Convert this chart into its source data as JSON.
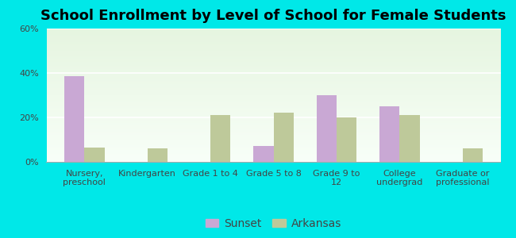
{
  "title": "School Enrollment by Level of School for Female Students",
  "categories": [
    "Nursery,\npreschool",
    "Kindergarten",
    "Grade 1 to 4",
    "Grade 5 to 8",
    "Grade 9 to\n12",
    "College\nundergrad",
    "Graduate or\nprofessional"
  ],
  "sunset_values": [
    38.5,
    0,
    0,
    7,
    30,
    25,
    0
  ],
  "arkansas_values": [
    6.5,
    6,
    21,
    22,
    20,
    21,
    6
  ],
  "sunset_color": "#c9a8d4",
  "arkansas_color": "#bec99a",
  "background_color": "#00e8e8",
  "plot_bg_top": "#e6f5e0",
  "plot_bg_bottom": "#f8fff8",
  "ylim": [
    0,
    60
  ],
  "yticks": [
    0,
    20,
    40,
    60
  ],
  "ytick_labels": [
    "0%",
    "20%",
    "40%",
    "60%"
  ],
  "legend_labels": [
    "Sunset",
    "Arkansas"
  ],
  "bar_width": 0.32,
  "title_fontsize": 13,
  "tick_fontsize": 8,
  "legend_fontsize": 10
}
